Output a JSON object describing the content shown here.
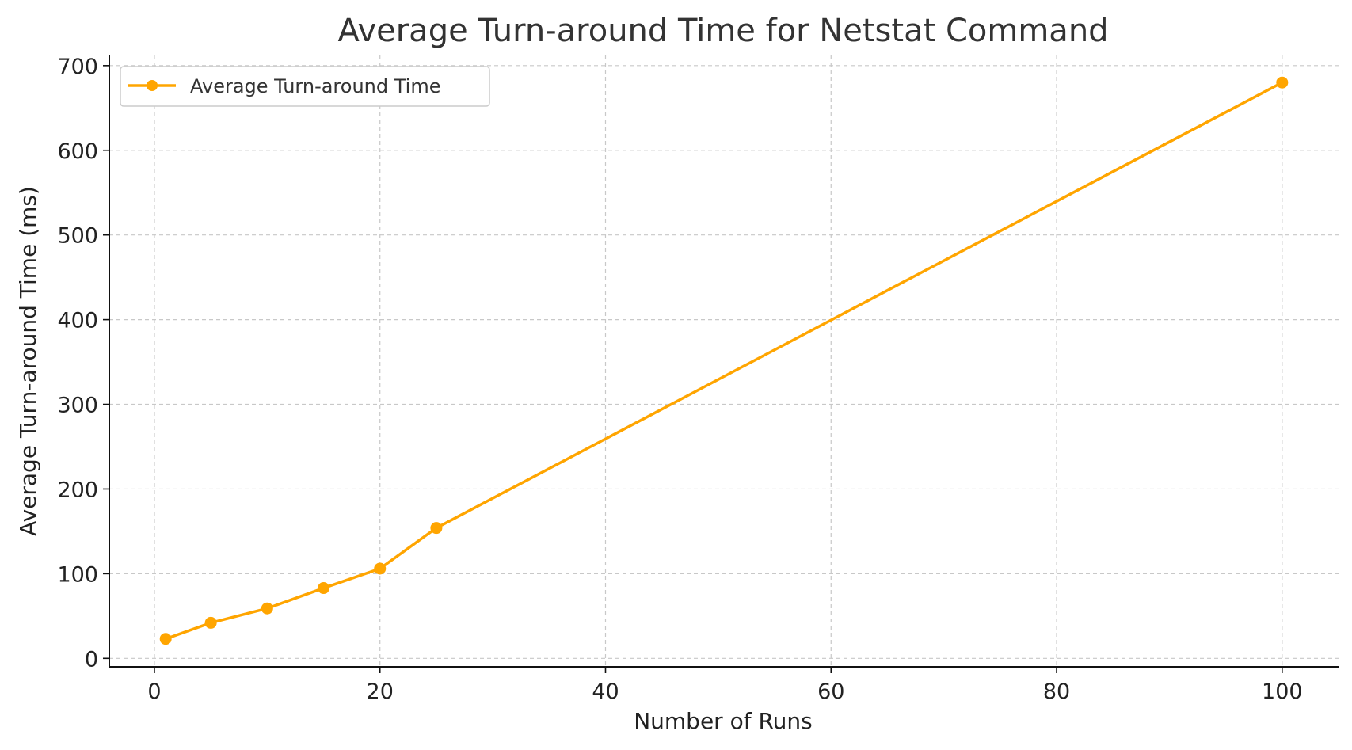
{
  "chart_data": {
    "type": "line",
    "title": "Average Turn-around Time for Netstat Command",
    "xlabel": "Number of Runs",
    "ylabel": "Average Turn-around Time (ms)",
    "xlim": [
      -4,
      105
    ],
    "ylim": [
      -10,
      712
    ],
    "xticks": [
      0,
      20,
      40,
      60,
      80,
      100
    ],
    "yticks": [
      0,
      100,
      200,
      300,
      400,
      500,
      600,
      700
    ],
    "grid": true,
    "legend_position": "top-left",
    "series": [
      {
        "name": "Average Turn-around Time",
        "color": "#ffa500",
        "marker": "circle",
        "x": [
          1,
          5,
          10,
          15,
          20,
          25,
          100
        ],
        "y": [
          23,
          42,
          59,
          83,
          106,
          154,
          680
        ]
      }
    ]
  }
}
